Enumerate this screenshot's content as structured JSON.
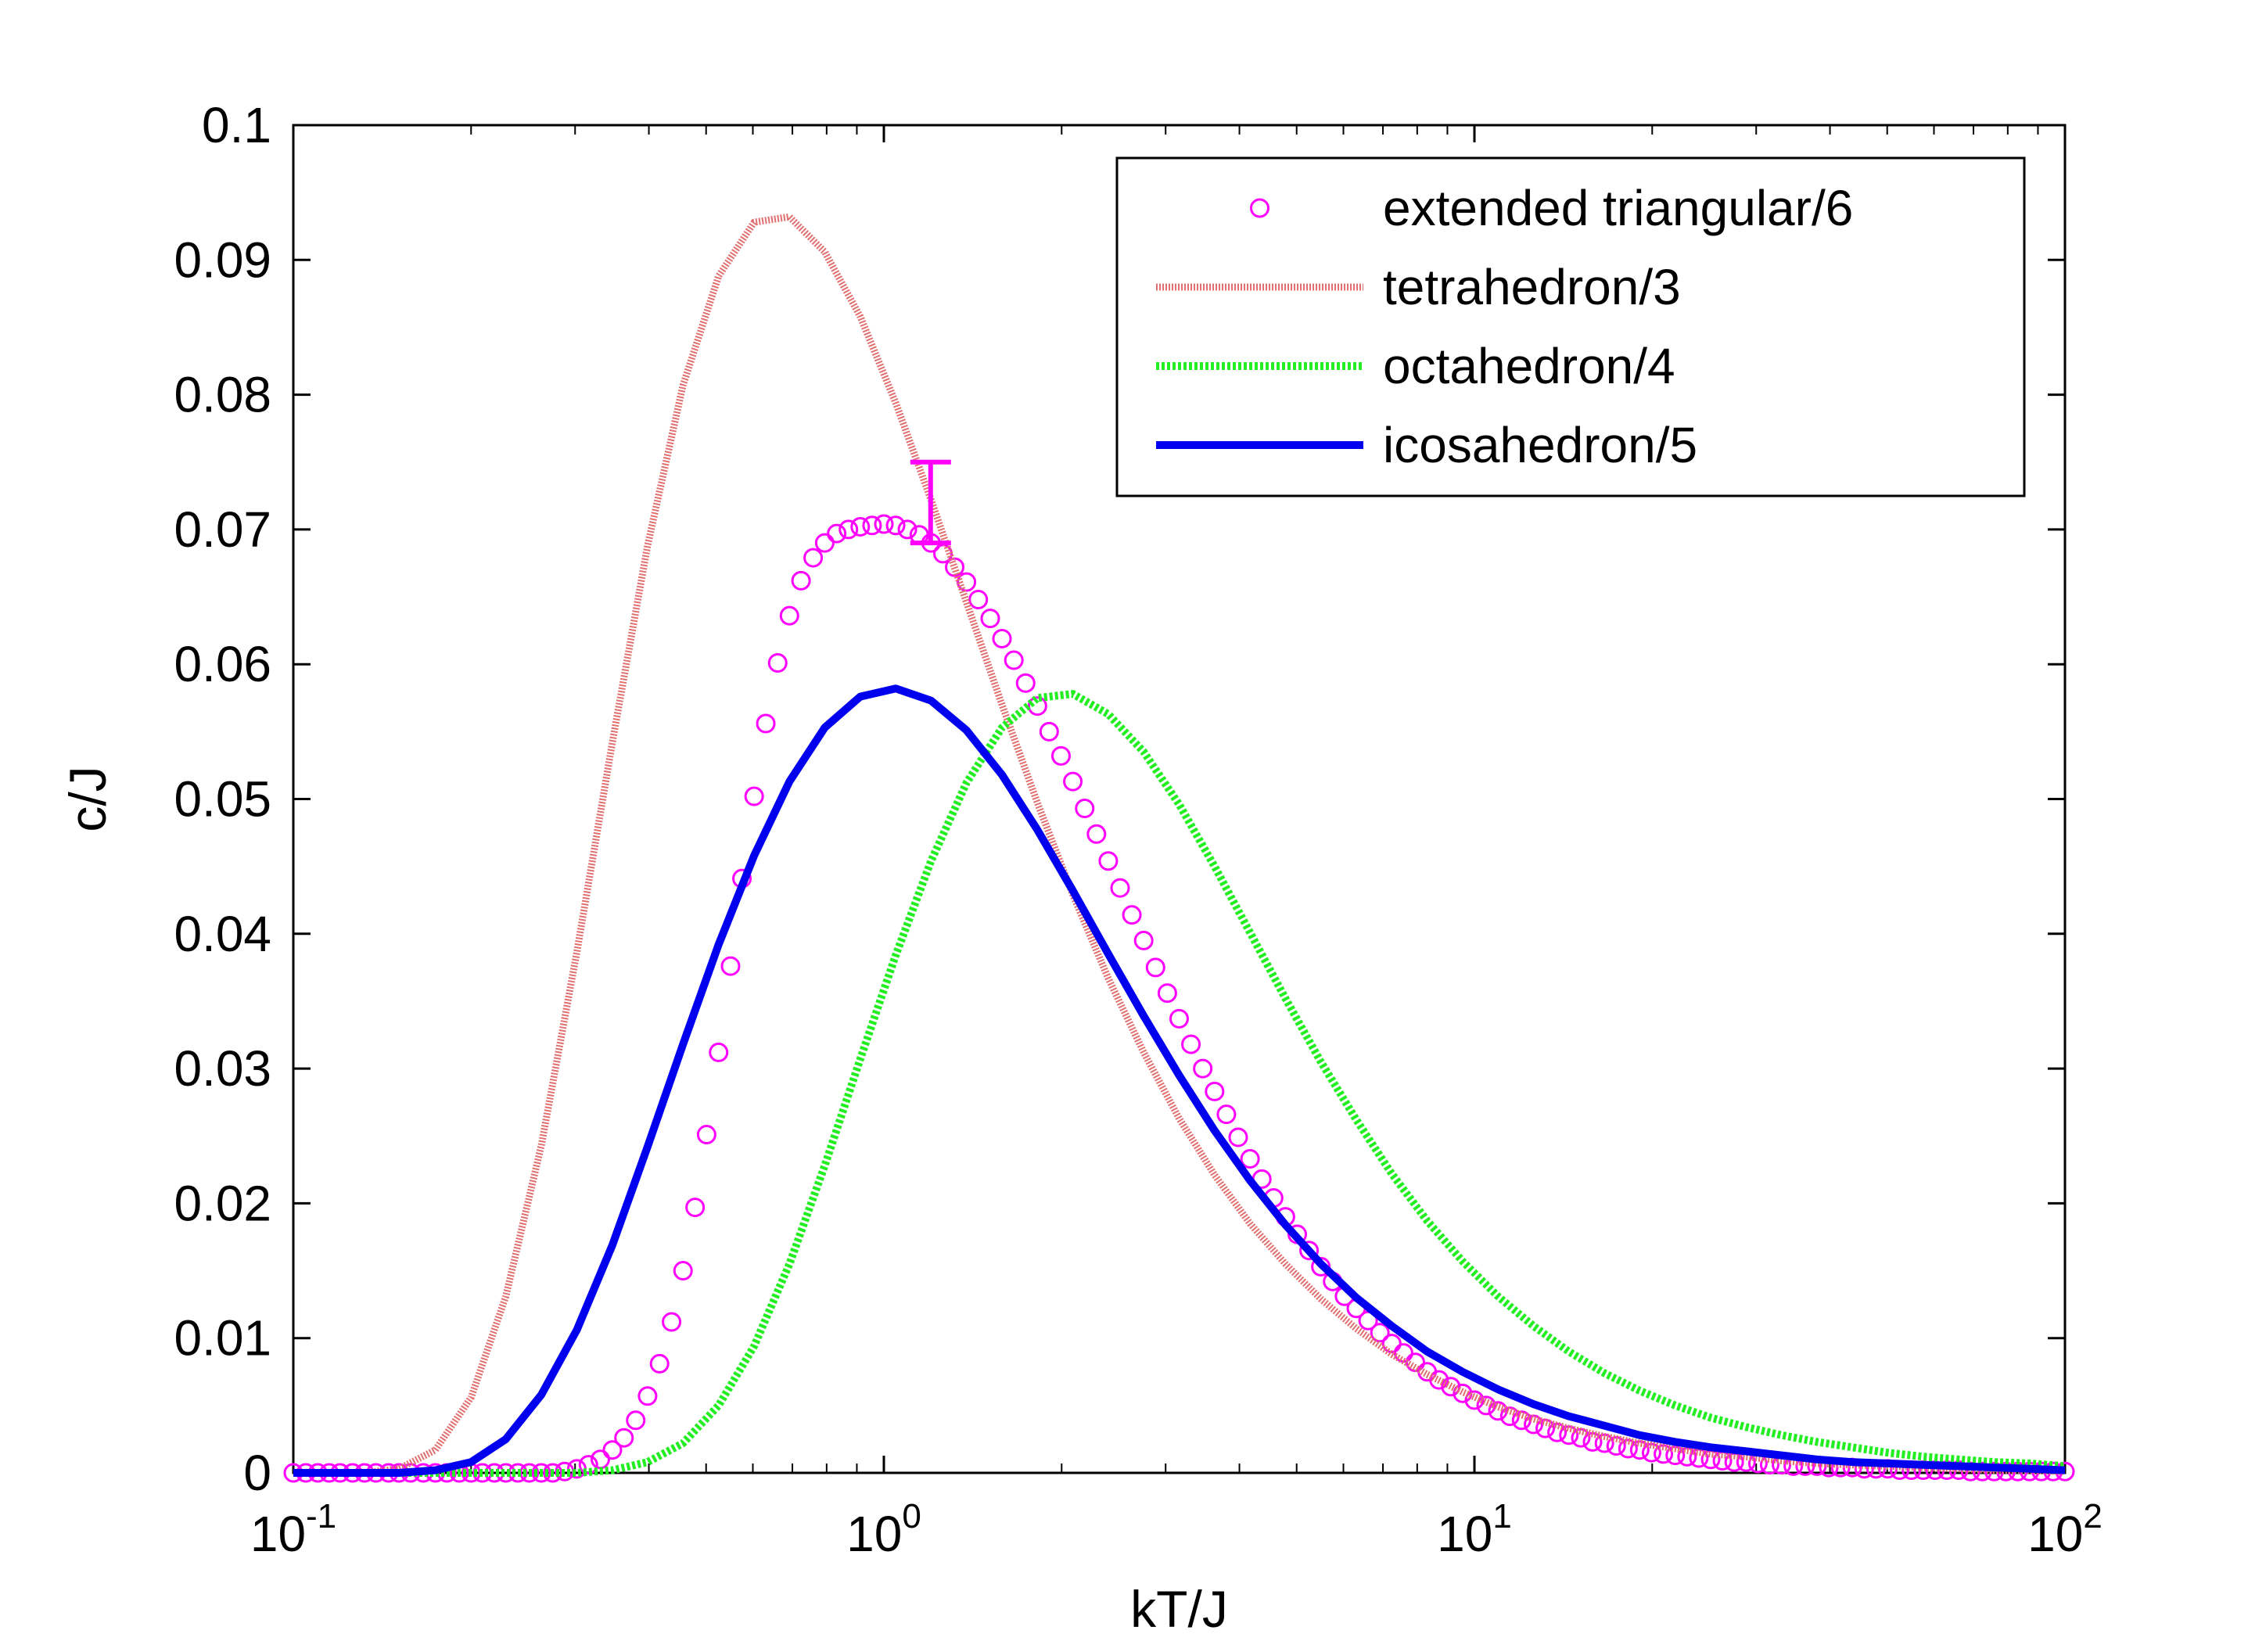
{
  "chart_data": {
    "type": "line",
    "title": "",
    "xlabel": "kT/J",
    "ylabel": "c/J",
    "xscale": "log",
    "xlim": [
      0.1,
      100
    ],
    "ylim": [
      0,
      0.1
    ],
    "x_ticks": [
      {
        "value": 0.1,
        "base": "10",
        "exp": "-1"
      },
      {
        "value": 1,
        "base": "10",
        "exp": "0"
      },
      {
        "value": 10,
        "base": "10",
        "exp": "1"
      },
      {
        "value": 100,
        "base": "10",
        "exp": "2"
      }
    ],
    "y_ticks": [
      {
        "value": 0,
        "label": "0"
      },
      {
        "value": 0.01,
        "label": "0.01"
      },
      {
        "value": 0.02,
        "label": "0.02"
      },
      {
        "value": 0.03,
        "label": "0.03"
      },
      {
        "value": 0.04,
        "label": "0.04"
      },
      {
        "value": 0.05,
        "label": "0.05"
      },
      {
        "value": 0.06,
        "label": "0.06"
      },
      {
        "value": 0.07,
        "label": "0.07"
      },
      {
        "value": 0.08,
        "label": "0.08"
      },
      {
        "value": 0.09,
        "label": "0.09"
      },
      {
        "value": 0.1,
        "label": "0.1"
      }
    ],
    "grid": false,
    "legend_position": "top-right",
    "series": [
      {
        "name": "extended triangular/6",
        "style": "markers",
        "marker": "circle",
        "color": "#ff00ff",
        "x": [
          0.1,
          0.105,
          0.11,
          0.115,
          0.12,
          0.126,
          0.132,
          0.138,
          0.145,
          0.151,
          0.158,
          0.166,
          0.174,
          0.182,
          0.191,
          0.2,
          0.209,
          0.219,
          0.229,
          0.24,
          0.251,
          0.263,
          0.275,
          0.288,
          0.302,
          0.316,
          0.331,
          0.347,
          0.363,
          0.38,
          0.398,
          0.417,
          0.437,
          0.457,
          0.479,
          0.501,
          0.525,
          0.55,
          0.575,
          0.603,
          0.631,
          0.661,
          0.692,
          0.724,
          0.759,
          0.794,
          0.832,
          0.871,
          0.912,
          0.955,
          1.0,
          1.047,
          1.096,
          1.148,
          1.202,
          1.259,
          1.318,
          1.38,
          1.445,
          1.514,
          1.585,
          1.66,
          1.738,
          1.82,
          1.905,
          1.995,
          2.089,
          2.188,
          2.291,
          2.399,
          2.512,
          2.63,
          2.754,
          2.884,
          3.02,
          3.162,
          3.311,
          3.467,
          3.631,
          3.802,
          3.981,
          4.169,
          4.365,
          4.571,
          4.786,
          5.012,
          5.248,
          5.495,
          5.754,
          6.026,
          6.31,
          6.607,
          6.918,
          7.244,
          7.586,
          7.943,
          8.318,
          8.71,
          9.12,
          9.55,
          10.0,
          10.47,
          10.96,
          11.48,
          12.02,
          12.59,
          13.18,
          13.8,
          14.45,
          15.14,
          15.85,
          16.6,
          17.38,
          18.2,
          19.05,
          19.95,
          20.89,
          21.88,
          22.91,
          23.99,
          25.12,
          26.3,
          27.54,
          28.84,
          30.2,
          31.62,
          33.11,
          34.67,
          36.31,
          38.02,
          39.81,
          41.69,
          43.65,
          45.71,
          47.86,
          50.12,
          52.48,
          54.95,
          57.54,
          60.26,
          63.1,
          66.07,
          69.18,
          72.44,
          75.86,
          79.43,
          83.18,
          87.1,
          91.2,
          95.5,
          100.0
        ],
        "y": [
          0.0,
          0.0,
          0.0,
          0.0,
          0.0,
          0.0,
          0.0,
          0.0,
          0.0,
          0.0,
          0.0,
          0.0,
          0.0,
          0.0,
          0.0,
          0.0,
          0.0,
          0.0,
          0.0,
          0.0,
          0.0,
          0.0,
          0.0,
          0.0001,
          0.0003,
          0.0006,
          0.001,
          0.0017,
          0.0026,
          0.0039,
          0.0057,
          0.0081,
          0.0112,
          0.015,
          0.0197,
          0.0251,
          0.0312,
          0.0376,
          0.0441,
          0.0502,
          0.0556,
          0.0601,
          0.0636,
          0.0662,
          0.0679,
          0.069,
          0.0697,
          0.07,
          0.0702,
          0.0703,
          0.0704,
          0.0703,
          0.07,
          0.0696,
          0.069,
          0.0682,
          0.0672,
          0.0661,
          0.0648,
          0.0634,
          0.0619,
          0.0603,
          0.0586,
          0.0569,
          0.055,
          0.0532,
          0.0513,
          0.0493,
          0.0474,
          0.0454,
          0.0434,
          0.0414,
          0.0395,
          0.0375,
          0.0356,
          0.0337,
          0.0318,
          0.03,
          0.0283,
          0.0266,
          0.0249,
          0.0233,
          0.0218,
          0.0204,
          0.019,
          0.0177,
          0.0165,
          0.0153,
          0.0142,
          0.0131,
          0.0122,
          0.0113,
          0.0104,
          0.0096,
          0.0089,
          0.0082,
          0.0075,
          0.0069,
          0.0064,
          0.0059,
          0.0054,
          0.005,
          0.0046,
          0.0042,
          0.0039,
          0.0036,
          0.0033,
          0.003,
          0.0028,
          0.0026,
          0.0023,
          0.0022,
          0.002,
          0.0018,
          0.0017,
          0.0015,
          0.0014,
          0.0013,
          0.0012,
          0.0011,
          0.001,
          0.0009,
          0.0008,
          0.0008,
          0.0007,
          0.0006,
          0.0006,
          0.0005,
          0.0005,
          0.0005,
          0.0004,
          0.0004,
          0.0004,
          0.0003,
          0.0003,
          0.0003,
          0.0002,
          0.0002,
          0.0002,
          0.0002,
          0.0002,
          0.0002,
          0.0001,
          0.0001,
          0.0001,
          0.0001,
          0.0001,
          0.0001,
          0.0001,
          0.0001,
          0.0001
        ]
      },
      {
        "name": "tetrahedron/3",
        "style": "dotted",
        "color": "#e07070",
        "x": [
          0.1,
          0.115,
          0.132,
          0.151,
          0.174,
          0.2,
          0.229,
          0.263,
          0.302,
          0.347,
          0.398,
          0.457,
          0.525,
          0.603,
          0.692,
          0.794,
          0.912,
          1.047,
          1.202,
          1.38,
          1.585,
          1.82,
          2.089,
          2.399,
          2.754,
          3.162,
          3.631,
          4.169,
          4.786,
          5.495,
          6.31,
          7.244,
          8.318,
          9.55,
          10.96,
          12.59,
          14.45,
          16.6,
          19.05,
          21.88,
          25.12,
          28.84,
          33.11,
          38.02,
          43.65,
          50.12,
          57.54,
          66.07,
          75.86,
          87.1,
          100.0
        ],
        "y": [
          0.0,
          0.0,
          0.0,
          0.0003,
          0.0017,
          0.0056,
          0.0131,
          0.0243,
          0.0386,
          0.0542,
          0.0688,
          0.0807,
          0.0888,
          0.0928,
          0.0932,
          0.0906,
          0.0858,
          0.0794,
          0.0722,
          0.0646,
          0.057,
          0.0497,
          0.0429,
          0.0367,
          0.0312,
          0.0263,
          0.0221,
          0.0185,
          0.0155,
          0.0129,
          0.0107,
          0.0088,
          0.0073,
          0.006,
          0.0049,
          0.004,
          0.0033,
          0.0027,
          0.0022,
          0.0018,
          0.0014,
          0.0012,
          0.0009,
          0.0007,
          0.0006,
          0.0005,
          0.0004,
          0.0003,
          0.0002,
          0.0002,
          0.0001
        ]
      },
      {
        "name": "octahedron/4",
        "style": "dotted",
        "color": "#22ee22",
        "x": [
          0.1,
          0.115,
          0.132,
          0.151,
          0.174,
          0.2,
          0.229,
          0.263,
          0.302,
          0.347,
          0.398,
          0.457,
          0.525,
          0.603,
          0.692,
          0.794,
          0.912,
          1.047,
          1.202,
          1.38,
          1.585,
          1.82,
          2.089,
          2.399,
          2.754,
          3.162,
          3.631,
          4.169,
          4.786,
          5.495,
          6.31,
          7.244,
          8.318,
          9.55,
          10.96,
          12.59,
          14.45,
          16.6,
          19.05,
          21.88,
          25.12,
          28.84,
          33.11,
          38.02,
          43.65,
          50.12,
          57.54,
          66.07,
          75.86,
          87.1,
          100.0
        ],
        "y": [
          0.0,
          0.0,
          0.0,
          0.0,
          0.0,
          0.0,
          0.0,
          0.0,
          0.0,
          0.0002,
          0.0008,
          0.0022,
          0.005,
          0.0094,
          0.0155,
          0.0228,
          0.0307,
          0.0384,
          0.0454,
          0.0512,
          0.0553,
          0.0575,
          0.0578,
          0.0563,
          0.0535,
          0.0496,
          0.045,
          0.0401,
          0.0352,
          0.0305,
          0.0262,
          0.0222,
          0.0187,
          0.0157,
          0.0131,
          0.0109,
          0.009,
          0.0074,
          0.0061,
          0.005,
          0.0041,
          0.0034,
          0.0028,
          0.0023,
          0.0019,
          0.0015,
          0.0012,
          0.001,
          0.0008,
          0.0007,
          0.0005
        ]
      },
      {
        "name": "icosahedron/5",
        "style": "solid",
        "color": "#0000ee",
        "x": [
          0.1,
          0.115,
          0.132,
          0.151,
          0.174,
          0.2,
          0.229,
          0.263,
          0.302,
          0.347,
          0.398,
          0.457,
          0.525,
          0.603,
          0.692,
          0.794,
          0.912,
          1.047,
          1.202,
          1.38,
          1.585,
          1.82,
          2.089,
          2.399,
          2.754,
          3.162,
          3.631,
          4.169,
          4.786,
          5.495,
          6.31,
          7.244,
          8.318,
          9.55,
          10.96,
          12.59,
          14.45,
          16.6,
          19.05,
          21.88,
          25.12,
          28.84,
          33.11,
          38.02,
          43.65,
          50.12,
          57.54,
          66.07,
          75.86,
          87.1,
          100.0
        ],
        "y": [
          0.0,
          0.0,
          0.0,
          0.0,
          0.0002,
          0.0008,
          0.0025,
          0.0058,
          0.0106,
          0.0169,
          0.0242,
          0.0318,
          0.0392,
          0.0458,
          0.0513,
          0.0553,
          0.0576,
          0.0582,
          0.0573,
          0.0551,
          0.0518,
          0.0477,
          0.0432,
          0.0385,
          0.0339,
          0.0295,
          0.0254,
          0.0217,
          0.0184,
          0.0155,
          0.013,
          0.0109,
          0.009,
          0.0075,
          0.0062,
          0.0051,
          0.0042,
          0.0035,
          0.0028,
          0.0023,
          0.0019,
          0.0016,
          0.0013,
          0.001,
          0.0008,
          0.0007,
          0.0006,
          0.0005,
          0.0004,
          0.0003,
          0.0002
        ]
      }
    ],
    "error_bar": {
      "x": 1.2,
      "y": 0.072,
      "low": 0.069,
      "high": 0.075,
      "color": "#ff00ff"
    }
  }
}
